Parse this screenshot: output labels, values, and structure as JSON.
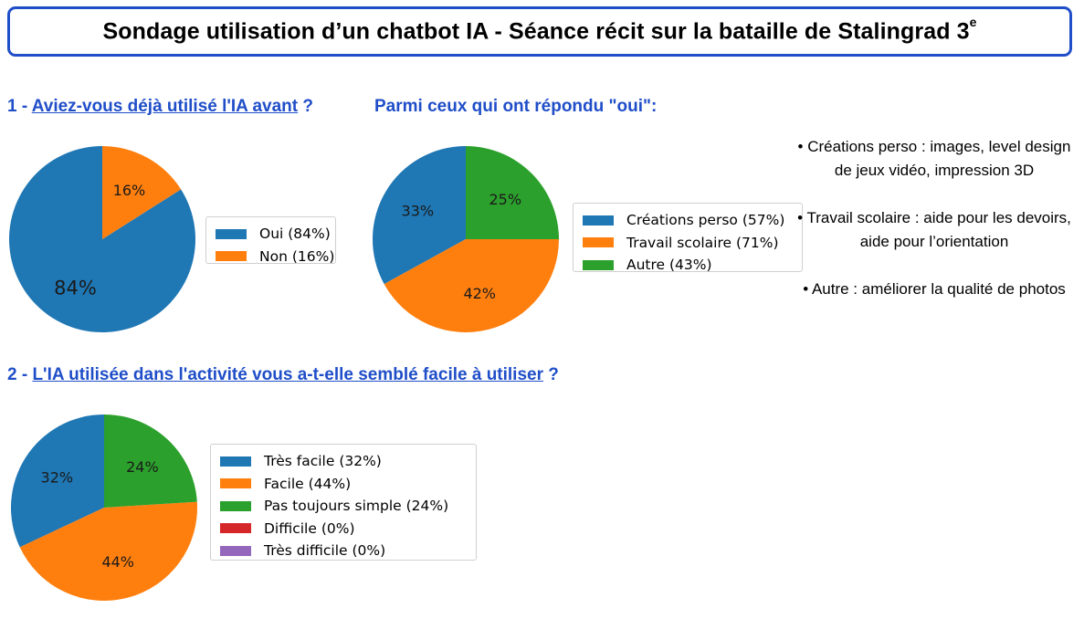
{
  "title": {
    "text": "Sondage utilisation d’un chatbot IA - Séance récit sur la bataille de Stalingrad 3",
    "sup": "e"
  },
  "q1": {
    "prefix": "1 - ",
    "underlined": "Aviez-vous déjà utilisé l'IA avant",
    "suffix": " ?"
  },
  "q1b": {
    "text": "Parmi ceux qui ont répondu \"oui\":"
  },
  "q2": {
    "prefix": "2 - ",
    "underlined": "L'IA utilisée dans l'activité vous a-t-elle semblé facile à utiliser",
    "suffix": " ?"
  },
  "notes": [
    {
      "bullet": "•",
      "text": "Créations perso : images, level design de jeux vidéo, impression 3D"
    },
    {
      "bullet": "•",
      "text": "Travail scolaire : aide pour les devoirs, aide pour l’orientation"
    },
    {
      "bullet": "•",
      "text": "Autre : améliorer la qualité de photos"
    }
  ],
  "chart_data": [
    {
      "type": "pie",
      "slices": [
        {
          "label": "Oui (84%)",
          "value": 84,
          "pct_label": "84%",
          "color": "#1f77b4"
        },
        {
          "label": "Non (16%)",
          "value": 16,
          "pct_label": "16%",
          "color": "#ff7f0e"
        }
      ]
    },
    {
      "type": "pie",
      "slices": [
        {
          "label": "Créations perso (57%)",
          "value": 33,
          "pct_label": "33%",
          "color": "#1f77b4"
        },
        {
          "label": "Travail scolaire (71%)",
          "value": 42,
          "pct_label": "42%",
          "color": "#ff7f0e"
        },
        {
          "label": "Autre (43%)",
          "value": 25,
          "pct_label": "25%",
          "color": "#2ca02c"
        }
      ]
    },
    {
      "type": "pie",
      "slices": [
        {
          "label": "Très facile (32%)",
          "value": 32,
          "pct_label": "32%",
          "color": "#1f77b4"
        },
        {
          "label": "Facile (44%)",
          "value": 44,
          "pct_label": "44%",
          "color": "#ff7f0e"
        },
        {
          "label": "Pas toujours simple (24%)",
          "value": 24,
          "pct_label": "24%",
          "color": "#2ca02c"
        },
        {
          "label": "Difficile (0%)",
          "value": 0,
          "pct_label": "",
          "color": "#d62728"
        },
        {
          "label": "Très difficile (0%)",
          "value": 0,
          "pct_label": "",
          "color": "#9467bd"
        }
      ]
    }
  ]
}
